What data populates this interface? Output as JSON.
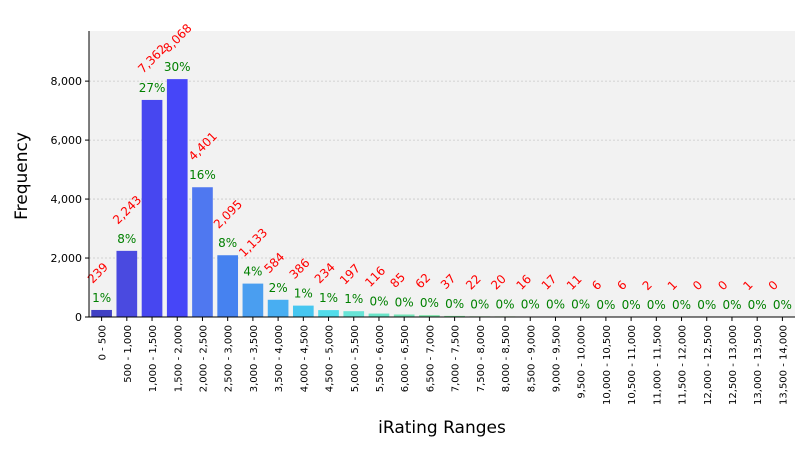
{
  "chart_data": {
    "type": "bar",
    "xlabel": "iRating Ranges",
    "ylabel": "Frequency",
    "ylim": [
      0,
      9700
    ],
    "y_ticks": [
      0,
      2000,
      4000,
      6000,
      8000
    ],
    "y_tick_labels": [
      "0",
      "2,000",
      "4,000",
      "6,000",
      "8,000"
    ],
    "grid": true,
    "categories": [
      "0 - 500",
      "500 - 1,000",
      "1,000 - 1,500",
      "1,500 - 2,000",
      "2,000 - 2,500",
      "2,500 - 3,000",
      "3,000 - 3,500",
      "3,500 - 4,000",
      "4,000 - 4,500",
      "4,500 - 5,000",
      "5,000 - 5,500",
      "5,500 - 6,000",
      "6,000 - 6,500",
      "6,500 - 7,000",
      "7,000 - 7,500",
      "7,500 - 8,000",
      "8,000 - 8,500",
      "8,500 - 9,000",
      "9,000 - 9,500",
      "9,500 - 10,000",
      "10,000 - 10,500",
      "10,500 - 11,000",
      "11,000 - 11,500",
      "11,500 - 12,000",
      "12,000 - 12,500",
      "12,500 - 13,000",
      "13,000 - 13,500",
      "13,500 - 14,000"
    ],
    "values": [
      239,
      2243,
      7362,
      8068,
      4401,
      2095,
      1133,
      584,
      386,
      234,
      197,
      116,
      85,
      62,
      37,
      22,
      20,
      16,
      17,
      11,
      6,
      6,
      2,
      1,
      0,
      0,
      1,
      0
    ],
    "count_labels": [
      "239",
      "2,243",
      "7,362",
      "8,068",
      "4,401",
      "2,095",
      "1,133",
      "584",
      "386",
      "234",
      "197",
      "116",
      "85",
      "62",
      "37",
      "22",
      "20",
      "16",
      "17",
      "11",
      "6",
      "6",
      "2",
      "1",
      "0",
      "0",
      "1",
      "0"
    ],
    "percent_labels": [
      "1%",
      "8%",
      "27%",
      "30%",
      "16%",
      "8%",
      "4%",
      "2%",
      "1%",
      "1%",
      "1%",
      "0%",
      "0%",
      "0%",
      "0%",
      "0%",
      "0%",
      "0%",
      "0%",
      "0%",
      "0%",
      "0%",
      "0%",
      "0%",
      "0%",
      "0%",
      "0%",
      "0%"
    ],
    "colors": [
      "#4040c4",
      "#4a4ae0",
      "#4747f0",
      "#4646f8",
      "#4f78f0",
      "#4682f0",
      "#4a9ef0",
      "#48aef2",
      "#46c6f0",
      "#52dcea",
      "#68e4d6",
      "#6ae4c8",
      "#74e4b8",
      "#7ae4a8",
      "#80e29a",
      "#88e08e",
      "#8ee084",
      "#94de7c",
      "#9cdc74",
      "#a4da6c",
      "#acd864",
      "#b4d65e",
      "#bcd458",
      "#c4d252",
      "#ccd04c",
      "#d2ce46",
      "#d8cc40",
      "#dcca3c"
    ],
    "plot_background": "#f2f2f2",
    "count_label_color": "#ff0000",
    "percent_label_color": "#008000"
  }
}
